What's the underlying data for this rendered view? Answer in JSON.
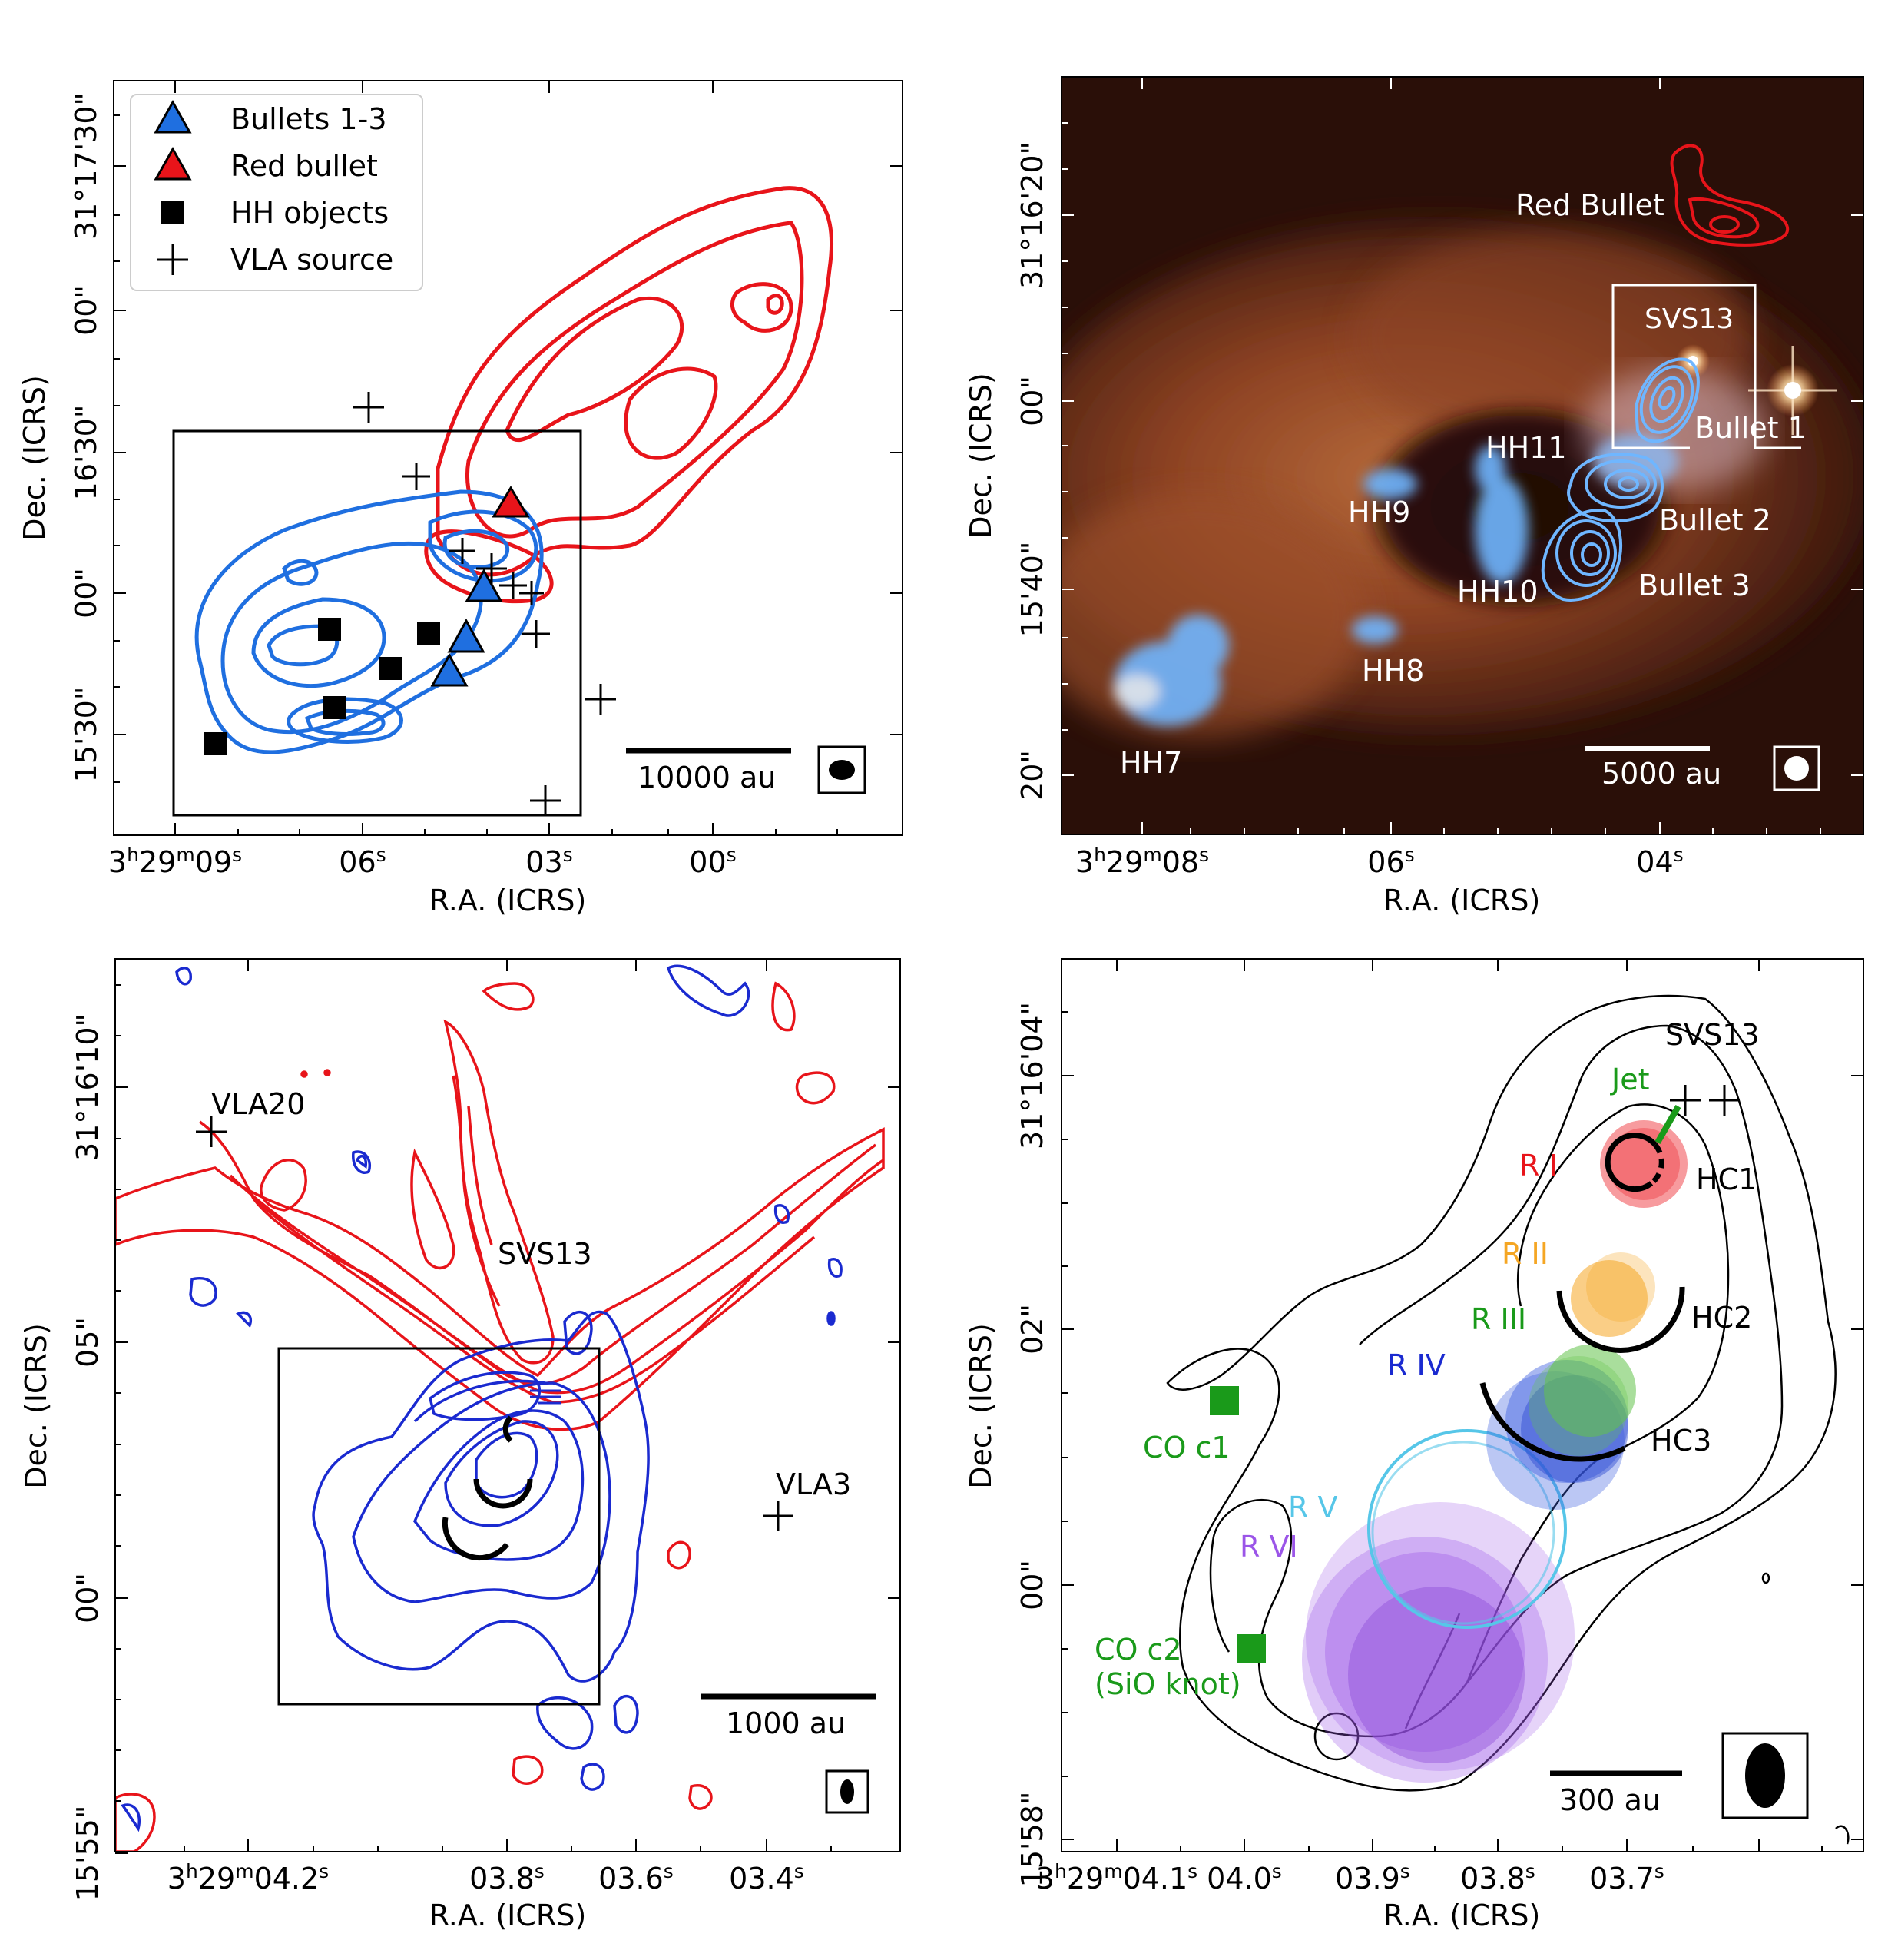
{
  "chart_data": [
    {
      "type": "scatter",
      "panel": "top-left",
      "xlabel": "R.A. (ICRS)",
      "ylabel": "Dec. (ICRS)",
      "xticks": [
        {
          "h": "3",
          "m": "29",
          "s": "09",
          "label": "3h29m09s"
        },
        {
          "s": "06"
        },
        {
          "s": "03"
        },
        {
          "s": "00"
        }
      ],
      "yticks": [
        "31°17'30\"",
        "00\"",
        "16'30\"",
        "00\"",
        "15'30\""
      ],
      "legend": {
        "placement": "top-left",
        "items": [
          {
            "label": "Bullets 1-3",
            "marker": "triangle",
            "color": "#1f6fe0"
          },
          {
            "label": "Red bullet",
            "marker": "triangle",
            "color": "#e8141a"
          },
          {
            "label": "HH objects",
            "marker": "square",
            "color": "#000000"
          },
          {
            "label": "VLA source",
            "marker": "plus",
            "color": "#000000"
          }
        ]
      },
      "scalebar": "10000 au",
      "contours": [
        {
          "name": "redshifted",
          "color": "#e8141a"
        },
        {
          "name": "blueshifted",
          "color": "#1f6fe0"
        }
      ]
    },
    {
      "type": "image",
      "panel": "top-right",
      "xlabel": "R.A. (ICRS)",
      "ylabel": "Dec. (ICRS)",
      "xticks": [
        {
          "h": "3",
          "m": "29",
          "s": "08",
          "label": "3h29m08s"
        },
        {
          "s": "06"
        },
        {
          "s": "04"
        }
      ],
      "yticks": [
        "31°16'20\"",
        "00\"",
        "15'40\"",
        "20\""
      ],
      "labels": [
        "Red Bullet",
        "SVS13",
        "Bullet 1",
        "HH11",
        "Bullet 2",
        "HH9",
        "Bullet 3",
        "HH10",
        "HH8",
        "HH7"
      ],
      "scalebar": "5000 au",
      "colors": {
        "bg": "#2a0f08",
        "nebula": "#a8532a",
        "blue": "#6fb6ff",
        "red": "#e8141a"
      }
    },
    {
      "type": "contour",
      "panel": "bottom-left",
      "xlabel": "R.A. (ICRS)",
      "ylabel": "Dec. (ICRS)",
      "xticks": [
        {
          "h": "3",
          "m": "29",
          "s": "04.2",
          "label": "3h29m04.2s"
        },
        {
          "s": "03.8"
        },
        {
          "s": "03.6"
        },
        {
          "s": "03.4"
        }
      ],
      "yticks": [
        "31°16'10\"",
        "05\"",
        "00\"",
        "15'55\""
      ],
      "labels": [
        "VLA20",
        "SVS13",
        "VLA3"
      ],
      "scalebar": "1000 au"
    },
    {
      "type": "scatter",
      "panel": "bottom-right",
      "xlabel": "R.A. (ICRS)",
      "ylabel": "Dec. (ICRS)",
      "xticks": [
        {
          "h": "3",
          "m": "29",
          "s": "04.1",
          "label": "3h29m04.1s"
        },
        {
          "s": "04.0"
        },
        {
          "s": "03.9"
        },
        {
          "s": "03.8"
        },
        {
          "s": "03.7"
        }
      ],
      "yticks": [
        "31°16'04\"",
        "02\"",
        "00\"",
        "15'58\""
      ],
      "labels": [
        "SVS13",
        "Jet",
        "R I",
        "HC1",
        "R II",
        "HC2",
        "R III",
        "R IV",
        "HC3",
        "CO c1",
        "R V",
        "R VI",
        "CO c2",
        "(SiO knot)"
      ],
      "scalebar": "300 au",
      "colors": {
        "RI": "#f0484e",
        "RII": "#f5a623",
        "RIII": "#63c24a",
        "RIV": "#3d5fe0",
        "RV": "#56c6e8",
        "RVI": "#9b55e8",
        "CO": "#1a9a1a"
      }
    }
  ]
}
